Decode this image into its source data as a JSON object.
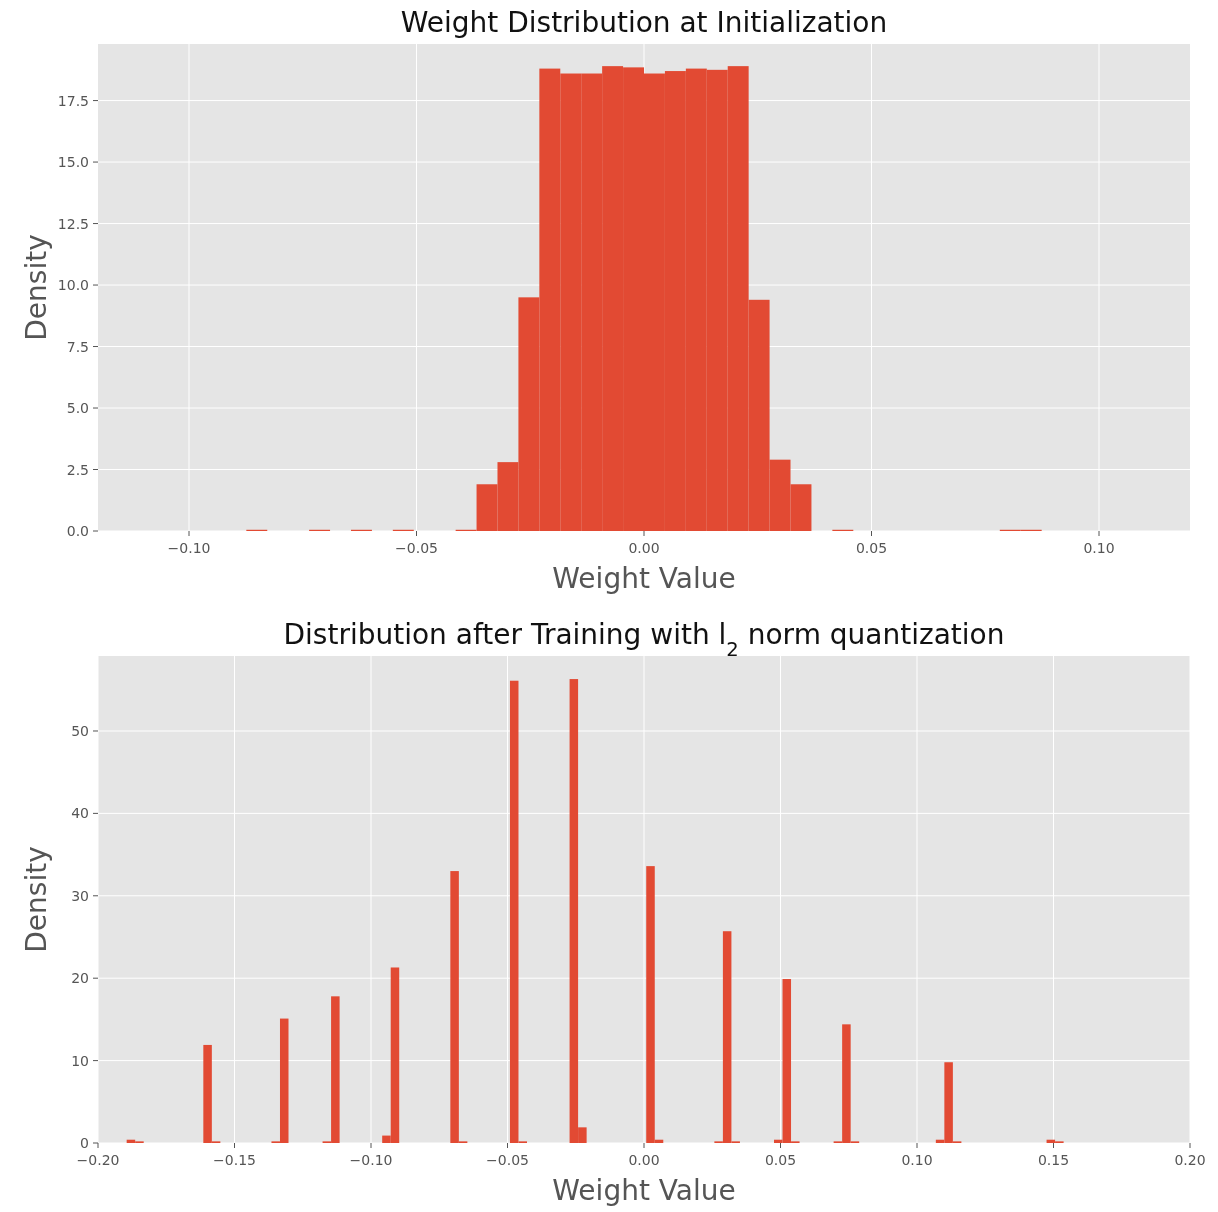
{
  "chart_data": [
    {
      "type": "histogram",
      "title": "Weight Distribution at Initialization",
      "xlabel": "Weight Value",
      "ylabel": "Density",
      "color": "#e24a33",
      "bins": [
        -0.0874,
        -0.0828,
        -0.0782,
        -0.0736,
        -0.069,
        -0.0644,
        -0.0598,
        -0.0552,
        -0.0506,
        -0.046,
        -0.0414,
        -0.0368,
        -0.0322,
        -0.0276,
        -0.023,
        -0.0184,
        -0.0138,
        -0.0092,
        -0.0046,
        0,
        0.0046,
        0.0092,
        0.0138,
        0.0184,
        0.023,
        0.0276,
        0.0322,
        0.0368,
        0.0414,
        0.046,
        0.0506,
        0.0552,
        0.0598,
        0.0644,
        0.069,
        0.0736,
        0.0782,
        0.0828,
        0.0874
      ],
      "values": [
        0.05,
        0,
        0,
        0.05,
        0,
        0.05,
        0,
        0.05,
        0,
        0,
        0.05,
        1.9,
        2.8,
        9.5,
        18.8,
        18.6,
        18.6,
        18.9,
        18.85,
        18.6,
        18.7,
        18.8,
        18.75,
        18.9,
        9.4,
        2.9,
        1.9,
        0,
        0.05,
        0,
        0,
        0,
        0,
        0,
        0,
        0,
        0.05,
        0.05
      ],
      "xlim": [
        -0.12,
        0.12
      ],
      "ylim": [
        0,
        19.8
      ],
      "xticks": [
        {
          "value": -0.1,
          "label": "−0.10"
        },
        {
          "value": -0.05,
          "label": "−0.05"
        },
        {
          "value": 0,
          "label": "0.00"
        },
        {
          "value": 0.05,
          "label": "0.05"
        },
        {
          "value": 0.1,
          "label": "0.10"
        }
      ],
      "yticks": [
        {
          "value": 0,
          "label": "0.0"
        },
        {
          "value": 2.5,
          "label": "2.5"
        },
        {
          "value": 5,
          "label": "5.0"
        },
        {
          "value": 7.5,
          "label": "7.5"
        },
        {
          "value": 10,
          "label": "10.0"
        },
        {
          "value": 12.5,
          "label": "12.5"
        },
        {
          "value": 15,
          "label": "15.0"
        },
        {
          "value": 17.5,
          "label": "17.5"
        }
      ],
      "grid": true
    },
    {
      "type": "histogram",
      "title": "Distribution after Training with l$_{2}$ norm quantization",
      "xlabel": "Weight Value",
      "ylabel": "Density",
      "color": "#e24a33",
      "bins": [
        -0.1895,
        -0.18638,
        -0.18326,
        -0.18014,
        -0.17702,
        -0.1739,
        -0.17078,
        -0.16766,
        -0.16454,
        -0.16142,
        -0.1583,
        -0.15518,
        -0.15206,
        -0.14894,
        -0.14582,
        -0.1427,
        -0.13958,
        -0.13646,
        -0.13334,
        -0.13022,
        -0.1271,
        -0.12398,
        -0.12086,
        -0.11774,
        -0.11462,
        -0.1115,
        -0.10838,
        -0.10526,
        -0.10214,
        -0.09902,
        -0.0959,
        -0.09278,
        -0.08966,
        -0.08654,
        -0.08342,
        -0.0803,
        -0.07718,
        -0.07406,
        -0.07094,
        -0.06782,
        -0.0647,
        -0.06158,
        -0.05846,
        -0.05534,
        -0.05222,
        -0.0491,
        -0.04598,
        -0.04286,
        -0.03974,
        -0.03662,
        -0.0335,
        -0.03038,
        -0.02726,
        -0.02414,
        -0.02102,
        -0.0179,
        -0.01478,
        -0.01166,
        -0.00854,
        -0.00542,
        -0.0023,
        0.00082,
        0.00394,
        0.00706,
        0.01018,
        0.0133,
        0.01642,
        0.01954,
        0.02266,
        0.02578,
        0.0289,
        0.03202,
        0.03514,
        0.03826,
        0.04138,
        0.0445,
        0.04762,
        0.05074,
        0.05386,
        0.05698,
        0.0601,
        0.06322,
        0.06634,
        0.06946,
        0.07258,
        0.0757,
        0.07882,
        0.08194,
        0.08506,
        0.08818,
        0.0913,
        0.09442,
        0.09754,
        0.10066,
        0.10378,
        0.1069,
        0.11002,
        0.11314,
        0.11626,
        0.11938,
        0.1225,
        0.12562,
        0.12874,
        0.13186,
        0.13498,
        0.1381,
        0.14122,
        0.14434,
        0.14746,
        0.15058,
        0.1537
      ],
      "values": [
        0.4,
        0.2,
        0,
        0,
        0,
        0,
        0,
        0,
        0,
        11.9,
        0.2,
        0,
        0,
        0,
        0,
        0,
        0,
        0.2,
        15.1,
        0,
        0,
        0,
        0,
        0.2,
        17.8,
        0,
        0,
        0,
        0,
        0,
        0.9,
        21.3,
        0,
        0,
        0,
        0,
        0,
        0,
        33.0,
        0.2,
        0,
        0,
        0,
        0,
        0,
        56.1,
        0.2,
        0,
        0,
        0,
        0,
        0,
        56.3,
        1.9,
        0,
        0,
        0,
        0,
        0,
        0,
        0,
        33.6,
        0.4,
        0,
        0,
        0,
        0,
        0,
        0,
        0.2,
        25.7,
        0.2,
        0,
        0,
        0,
        0,
        0.4,
        19.9,
        0.2,
        0,
        0,
        0,
        0,
        0.2,
        14.4,
        0.2,
        0,
        0,
        0,
        0,
        0,
        0,
        0,
        0,
        0,
        0.4,
        9.8,
        0.2,
        0,
        0,
        0,
        0,
        0,
        0,
        0,
        0,
        0,
        0,
        0.4,
        0.2
      ],
      "xlim": [
        -0.2,
        0.2
      ],
      "ylim": [
        0,
        59.1
      ],
      "xticks": [
        {
          "value": -0.2,
          "label": "−0.20"
        },
        {
          "value": -0.15,
          "label": "−0.15"
        },
        {
          "value": -0.1,
          "label": "−0.10"
        },
        {
          "value": -0.05,
          "label": "−0.05"
        },
        {
          "value": 0,
          "label": "0.00"
        },
        {
          "value": 0.05,
          "label": "0.05"
        },
        {
          "value": 0.1,
          "label": "0.10"
        },
        {
          "value": 0.15,
          "label": "0.15"
        },
        {
          "value": 0.2,
          "label": "0.20"
        }
      ],
      "yticks": [
        0,
        10,
        20,
        30,
        40,
        50
      ],
      "grid": true
    }
  ]
}
